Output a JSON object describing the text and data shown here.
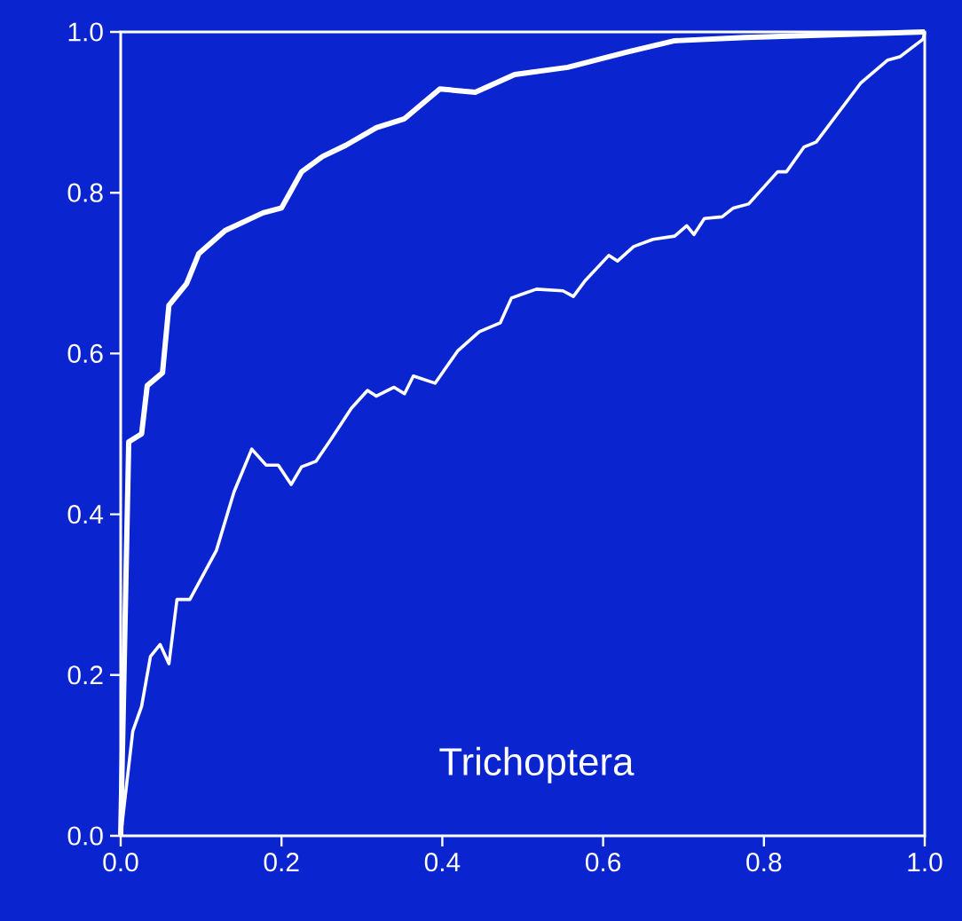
{
  "chart_data": {
    "type": "line",
    "xlim": [
      0,
      1
    ],
    "ylim": [
      0,
      1
    ],
    "xticks": [
      {
        "value": 0,
        "label": "0.0"
      },
      {
        "value": 0.2,
        "label": "0.2"
      },
      {
        "value": 0.4,
        "label": "0.4"
      },
      {
        "value": 0.6,
        "label": "0.6"
      },
      {
        "value": 0.8,
        "label": "0.8"
      },
      {
        "value": 1,
        "label": "1.0"
      }
    ],
    "yticks": [
      {
        "value": 0,
        "label": "0.0"
      },
      {
        "value": 0.2,
        "label": "0.2"
      },
      {
        "value": 0.4,
        "label": "0.4"
      },
      {
        "value": 0.6,
        "label": "0.6"
      },
      {
        "value": 0.8,
        "label": "0.8"
      },
      {
        "value": 1,
        "label": "1.0"
      }
    ],
    "marker": "none",
    "line_style": "solid",
    "annotations": [
      "Trichoptera"
    ],
    "series": [
      {
        "color": "#ffffff",
        "x": [
          0,
          0.01,
          0.026,
          0.033,
          0.052,
          0.06,
          0.082,
          0.097,
          0.13,
          0.177,
          0.2,
          0.225,
          0.251,
          0.28,
          0.318,
          0.353,
          0.397,
          0.441,
          0.49,
          0.556,
          0.63,
          0.689,
          0.777,
          1
        ],
        "values": [
          0,
          0.49,
          0.5,
          0.56,
          0.576,
          0.66,
          0.687,
          0.724,
          0.753,
          0.775,
          0.781,
          0.826,
          0.845,
          0.859,
          0.881,
          0.892,
          0.929,
          0.925,
          0.947,
          0.956,
          0.975,
          0.989,
          0.993,
          1
        ]
      },
      {
        "color": "#ffffff",
        "x": [
          0,
          0.015,
          0.026,
          0.037,
          0.049,
          0.06,
          0.07,
          0.086,
          0.119,
          0.141,
          0.163,
          0.181,
          0.196,
          0.212,
          0.225,
          0.243,
          0.262,
          0.287,
          0.307,
          0.318,
          0.34,
          0.353,
          0.364,
          0.391,
          0.419,
          0.446,
          0.472,
          0.486,
          0.497,
          0.517,
          0.55,
          0.563,
          0.578,
          0.607,
          0.618,
          0.638,
          0.662,
          0.689,
          0.704,
          0.713,
          0.726,
          0.748,
          0.762,
          0.781,
          0.817,
          0.828,
          0.85,
          0.865,
          0.92,
          0.954,
          0.969,
          0.998,
          1
        ],
        "values": [
          0,
          0.13,
          0.161,
          0.223,
          0.238,
          0.214,
          0.294,
          0.294,
          0.355,
          0.428,
          0.481,
          0.461,
          0.461,
          0.437,
          0.459,
          0.466,
          0.494,
          0.532,
          0.554,
          0.547,
          0.558,
          0.55,
          0.572,
          0.563,
          0.603,
          0.627,
          0.638,
          0.669,
          0.673,
          0.68,
          0.678,
          0.671,
          0.691,
          0.722,
          0.715,
          0.733,
          0.742,
          0.746,
          0.759,
          0.748,
          0.768,
          0.77,
          0.781,
          0.786,
          0.826,
          0.826,
          0.857,
          0.863,
          0.936,
          0.965,
          0.969,
          0.991,
          1
        ]
      }
    ]
  }
}
